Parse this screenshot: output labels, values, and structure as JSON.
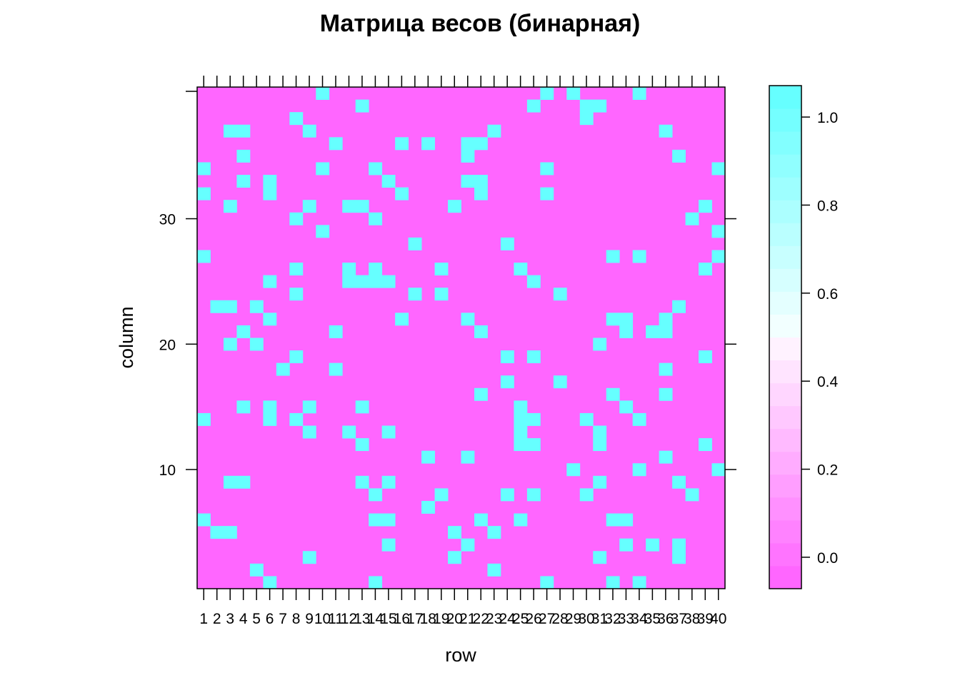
{
  "chart_data": {
    "type": "heatmap",
    "title": "Матрица весов (бинарная)",
    "xlabel": "row",
    "ylabel": "column",
    "x_tick_labels": [
      "1",
      "2",
      "3",
      "4",
      "5",
      "6",
      "7",
      "8",
      "9",
      "10",
      "11",
      "12",
      "13",
      "14",
      "15",
      "16",
      "17",
      "18",
      "19",
      "20",
      "21",
      "22",
      "23",
      "24",
      "25",
      "26",
      "27",
      "28",
      "29",
      "30",
      "31",
      "32",
      "33",
      "34",
      "35",
      "36",
      "37",
      "38",
      "39",
      "40"
    ],
    "y_tick_labels": [
      "10",
      "20",
      "30"
    ],
    "y_ticks": [
      10,
      20,
      30
    ],
    "n_rows": 40,
    "n_cols": 40,
    "colorbar_ticks": [
      "0.0",
      "0.2",
      "0.4",
      "0.6",
      "0.8",
      "1.0"
    ],
    "colorbar_tick_values": [
      0.0,
      0.2,
      0.4,
      0.6,
      0.8,
      1.0
    ],
    "colorbar_range": [
      -0.0714,
      1.0714
    ],
    "colorbar_colors": [
      "#FF66FF",
      "#FF74FF",
      "#FF82FF",
      "#FF90FF",
      "#FF9EFF",
      "#FFACFF",
      "#FFBAFF",
      "#FFC8FF",
      "#FFD6FF",
      "#FFE4FF",
      "#FFF2FF",
      "#F2FFFF",
      "#E4FFFF",
      "#D6FFFF",
      "#C8FFFF",
      "#BAFFFF",
      "#ACFFFF",
      "#9EFFFF",
      "#90FFFF",
      "#82FFFF",
      "#74FFFF",
      "#66FFFF"
    ],
    "color_zero": "#FF66FF",
    "color_one": "#66FFFF",
    "ones": [
      [
        10,
        40
      ],
      [
        27,
        40
      ],
      [
        29,
        40
      ],
      [
        34,
        40
      ],
      [
        13,
        39
      ],
      [
        26,
        39
      ],
      [
        30,
        39
      ],
      [
        31,
        39
      ],
      [
        8,
        38
      ],
      [
        30,
        38
      ],
      [
        3,
        37
      ],
      [
        4,
        37
      ],
      [
        9,
        37
      ],
      [
        23,
        37
      ],
      [
        36,
        37
      ],
      [
        11,
        36
      ],
      [
        16,
        36
      ],
      [
        18,
        36
      ],
      [
        21,
        36
      ],
      [
        22,
        36
      ],
      [
        4,
        35
      ],
      [
        21,
        35
      ],
      [
        37,
        35
      ],
      [
        1,
        34
      ],
      [
        10,
        34
      ],
      [
        14,
        34
      ],
      [
        27,
        34
      ],
      [
        40,
        34
      ],
      [
        4,
        33
      ],
      [
        6,
        33
      ],
      [
        15,
        33
      ],
      [
        21,
        33
      ],
      [
        22,
        33
      ],
      [
        1,
        32
      ],
      [
        6,
        32
      ],
      [
        16,
        32
      ],
      [
        22,
        32
      ],
      [
        27,
        32
      ],
      [
        3,
        31
      ],
      [
        9,
        31
      ],
      [
        12,
        31
      ],
      [
        13,
        31
      ],
      [
        20,
        31
      ],
      [
        39,
        31
      ],
      [
        8,
        30
      ],
      [
        14,
        30
      ],
      [
        38,
        30
      ],
      [
        10,
        29
      ],
      [
        40,
        29
      ],
      [
        17,
        28
      ],
      [
        24,
        28
      ],
      [
        1,
        27
      ],
      [
        32,
        27
      ],
      [
        34,
        27
      ],
      [
        40,
        27
      ],
      [
        8,
        26
      ],
      [
        12,
        26
      ],
      [
        14,
        26
      ],
      [
        19,
        26
      ],
      [
        25,
        26
      ],
      [
        39,
        26
      ],
      [
        6,
        25
      ],
      [
        12,
        25
      ],
      [
        13,
        25
      ],
      [
        14,
        25
      ],
      [
        15,
        25
      ],
      [
        26,
        25
      ],
      [
        8,
        24
      ],
      [
        17,
        24
      ],
      [
        19,
        24
      ],
      [
        28,
        24
      ],
      [
        2,
        23
      ],
      [
        3,
        23
      ],
      [
        5,
        23
      ],
      [
        37,
        23
      ],
      [
        6,
        22
      ],
      [
        16,
        22
      ],
      [
        21,
        22
      ],
      [
        32,
        22
      ],
      [
        33,
        22
      ],
      [
        36,
        22
      ],
      [
        4,
        21
      ],
      [
        11,
        21
      ],
      [
        22,
        21
      ],
      [
        33,
        21
      ],
      [
        35,
        21
      ],
      [
        36,
        21
      ],
      [
        3,
        20
      ],
      [
        5,
        20
      ],
      [
        31,
        20
      ],
      [
        8,
        19
      ],
      [
        24,
        19
      ],
      [
        26,
        19
      ],
      [
        39,
        19
      ],
      [
        7,
        18
      ],
      [
        11,
        18
      ],
      [
        36,
        18
      ],
      [
        24,
        17
      ],
      [
        28,
        17
      ],
      [
        22,
        16
      ],
      [
        32,
        16
      ],
      [
        36,
        16
      ],
      [
        4,
        15
      ],
      [
        6,
        15
      ],
      [
        9,
        15
      ],
      [
        13,
        15
      ],
      [
        25,
        15
      ],
      [
        33,
        15
      ],
      [
        1,
        14
      ],
      [
        6,
        14
      ],
      [
        8,
        14
      ],
      [
        25,
        14
      ],
      [
        26,
        14
      ],
      [
        30,
        14
      ],
      [
        34,
        14
      ],
      [
        9,
        13
      ],
      [
        12,
        13
      ],
      [
        15,
        13
      ],
      [
        25,
        13
      ],
      [
        31,
        13
      ],
      [
        13,
        12
      ],
      [
        25,
        12
      ],
      [
        26,
        12
      ],
      [
        31,
        12
      ],
      [
        39,
        12
      ],
      [
        18,
        11
      ],
      [
        21,
        11
      ],
      [
        36,
        11
      ],
      [
        29,
        10
      ],
      [
        34,
        10
      ],
      [
        40,
        10
      ],
      [
        3,
        9
      ],
      [
        4,
        9
      ],
      [
        13,
        9
      ],
      [
        15,
        9
      ],
      [
        31,
        9
      ],
      [
        37,
        9
      ],
      [
        14,
        8
      ],
      [
        19,
        8
      ],
      [
        24,
        8
      ],
      [
        26,
        8
      ],
      [
        30,
        8
      ],
      [
        38,
        8
      ],
      [
        18,
        7
      ],
      [
        1,
        6
      ],
      [
        14,
        6
      ],
      [
        15,
        6
      ],
      [
        22,
        6
      ],
      [
        25,
        6
      ],
      [
        32,
        6
      ],
      [
        33,
        6
      ],
      [
        2,
        5
      ],
      [
        3,
        5
      ],
      [
        20,
        5
      ],
      [
        23,
        5
      ],
      [
        15,
        4
      ],
      [
        21,
        4
      ],
      [
        33,
        4
      ],
      [
        35,
        4
      ],
      [
        37,
        4
      ],
      [
        9,
        3
      ],
      [
        20,
        3
      ],
      [
        31,
        3
      ],
      [
        37,
        3
      ],
      [
        5,
        2
      ],
      [
        23,
        2
      ],
      [
        6,
        1
      ],
      [
        14,
        1
      ],
      [
        27,
        1
      ],
      [
        32,
        1
      ],
      [
        34,
        1
      ]
    ]
  }
}
